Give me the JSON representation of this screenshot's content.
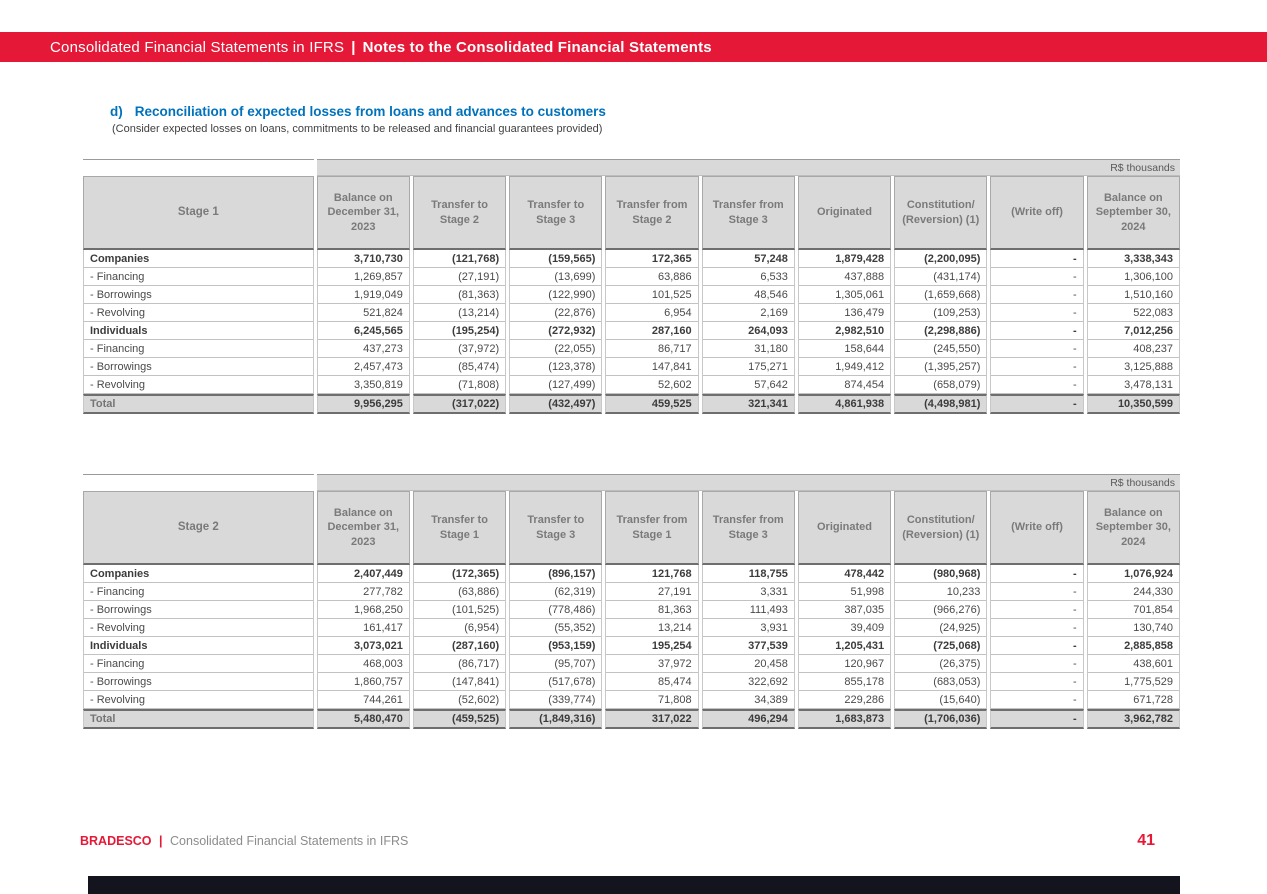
{
  "header": {
    "left": "Consolidated Financial Statements in IFRS",
    "separator": "|",
    "right": "Notes to the Consolidated Financial Statements"
  },
  "section": {
    "letter": "d)",
    "title": "Reconciliation of expected losses from loans and advances to customers",
    "subtitle": "(Consider expected losses on loans, commitments to be released and financial guarantees provided)"
  },
  "colors": {
    "accent_red": "#E51937",
    "title_blue": "#0072BC",
    "header_gray": "#D9D9D9"
  },
  "tables": [
    {
      "unit": "R$ thousands",
      "stage_label": "Stage 1",
      "columns": [
        "Balance on December 31, 2023",
        "Transfer to Stage 2",
        "Transfer to Stage 3",
        "Transfer from Stage 2",
        "Transfer from Stage 3",
        "Originated",
        "Constitution/ (Reversion) (1)",
        "(Write off)",
        "Balance on September 30, 2024"
      ],
      "rows": [
        {
          "label": "Companies",
          "style": "group",
          "values": [
            "3,710,730",
            "(121,768)",
            "(159,565)",
            "172,365",
            "57,248",
            "1,879,428",
            "(2,200,095)",
            "-",
            "3,338,343"
          ]
        },
        {
          "label": "- Financing",
          "style": "item",
          "values": [
            "1,269,857",
            "(27,191)",
            "(13,699)",
            "63,886",
            "6,533",
            "437,888",
            "(431,174)",
            "-",
            "1,306,100"
          ]
        },
        {
          "label": "- Borrowings",
          "style": "item",
          "values": [
            "1,919,049",
            "(81,363)",
            "(122,990)",
            "101,525",
            "48,546",
            "1,305,061",
            "(1,659,668)",
            "-",
            "1,510,160"
          ]
        },
        {
          "label": "- Revolving",
          "style": "item",
          "values": [
            "521,824",
            "(13,214)",
            "(22,876)",
            "6,954",
            "2,169",
            "136,479",
            "(109,253)",
            "-",
            "522,083"
          ]
        },
        {
          "label": "Individuals",
          "style": "group",
          "values": [
            "6,245,565",
            "(195,254)",
            "(272,932)",
            "287,160",
            "264,093",
            "2,982,510",
            "(2,298,886)",
            "-",
            "7,012,256"
          ]
        },
        {
          "label": "- Financing",
          "style": "item",
          "values": [
            "437,273",
            "(37,972)",
            "(22,055)",
            "86,717",
            "31,180",
            "158,644",
            "(245,550)",
            "-",
            "408,237"
          ]
        },
        {
          "label": "- Borrowings",
          "style": "item",
          "values": [
            "2,457,473",
            "(85,474)",
            "(123,378)",
            "147,841",
            "175,271",
            "1,949,412",
            "(1,395,257)",
            "-",
            "3,125,888"
          ]
        },
        {
          "label": "- Revolving",
          "style": "item",
          "values": [
            "3,350,819",
            "(71,808)",
            "(127,499)",
            "52,602",
            "57,642",
            "874,454",
            "(658,079)",
            "-",
            "3,478,131"
          ]
        },
        {
          "label": "Total",
          "style": "total",
          "values": [
            "9,956,295",
            "(317,022)",
            "(432,497)",
            "459,525",
            "321,341",
            "4,861,938",
            "(4,498,981)",
            "-",
            "10,350,599"
          ]
        }
      ]
    },
    {
      "unit": "R$ thousands",
      "stage_label": "Stage 2",
      "columns": [
        "Balance on December 31, 2023",
        "Transfer to Stage 1",
        "Transfer to Stage 3",
        "Transfer from Stage 1",
        "Transfer from Stage 3",
        "Originated",
        "Constitution/ (Reversion) (1)",
        "(Write off)",
        "Balance on September 30, 2024"
      ],
      "rows": [
        {
          "label": "Companies",
          "style": "group",
          "values": [
            "2,407,449",
            "(172,365)",
            "(896,157)",
            "121,768",
            "118,755",
            "478,442",
            "(980,968)",
            "-",
            "1,076,924"
          ]
        },
        {
          "label": "- Financing",
          "style": "item",
          "values": [
            "277,782",
            "(63,886)",
            "(62,319)",
            "27,191",
            "3,331",
            "51,998",
            "10,233",
            "-",
            "244,330"
          ]
        },
        {
          "label": "- Borrowings",
          "style": "item",
          "values": [
            "1,968,250",
            "(101,525)",
            "(778,486)",
            "81,363",
            "111,493",
            "387,035",
            "(966,276)",
            "-",
            "701,854"
          ]
        },
        {
          "label": "- Revolving",
          "style": "item",
          "values": [
            "161,417",
            "(6,954)",
            "(55,352)",
            "13,214",
            "3,931",
            "39,409",
            "(24,925)",
            "-",
            "130,740"
          ]
        },
        {
          "label": "Individuals",
          "style": "group",
          "values": [
            "3,073,021",
            "(287,160)",
            "(953,159)",
            "195,254",
            "377,539",
            "1,205,431",
            "(725,068)",
            "-",
            "2,885,858"
          ]
        },
        {
          "label": "- Financing",
          "style": "item",
          "values": [
            "468,003",
            "(86,717)",
            "(95,707)",
            "37,972",
            "20,458",
            "120,967",
            "(26,375)",
            "-",
            "438,601"
          ]
        },
        {
          "label": "- Borrowings",
          "style": "item",
          "values": [
            "1,860,757",
            "(147,841)",
            "(517,678)",
            "85,474",
            "322,692",
            "855,178",
            "(683,053)",
            "-",
            "1,775,529"
          ]
        },
        {
          "label": "- Revolving",
          "style": "item",
          "values": [
            "744,261",
            "(52,602)",
            "(339,774)",
            "71,808",
            "34,389",
            "229,286",
            "(15,640)",
            "-",
            "671,728"
          ]
        },
        {
          "label": "Total",
          "style": "total",
          "values": [
            "5,480,470",
            "(459,525)",
            "(1,849,316)",
            "317,022",
            "496,294",
            "1,683,873",
            "(1,706,036)",
            "-",
            "3,962,782"
          ]
        }
      ]
    }
  ],
  "footer": {
    "brand": "BRADESCO",
    "separator": "|",
    "description": "Consolidated Financial Statements in IFRS",
    "page_number": "41"
  }
}
